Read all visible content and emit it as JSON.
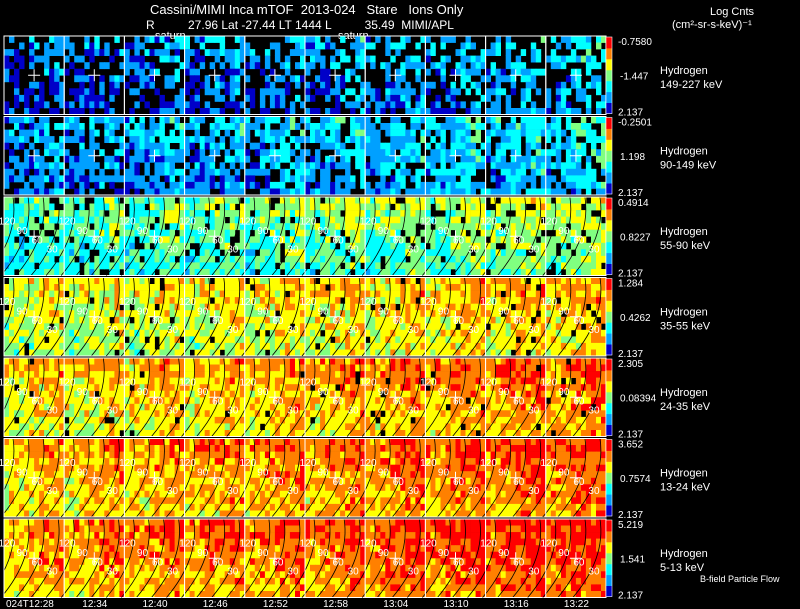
{
  "header": {
    "title": "Cassini/MIMI Inca mTOF  2013-024   Stare   Ions Only",
    "geometry_line": "R          27.96 Lat -27.44 LT 1444 L          35.49  MIMI/APL",
    "panel_tags": [
      "saturn",
      "saturn"
    ]
  },
  "units": {
    "line1": "Log Cnts",
    "line2": "(cm²-sr-s-keV)⁻¹"
  },
  "footer_note": "B-field Particle Flow",
  "chart_data": {
    "type": "heatmap",
    "title": "Cassini/MIMI Inca mTOF  2013-024   Stare   Ions Only",
    "time_labels": [
      "024T12:28",
      "12:34",
      "12:40",
      "12:46",
      "12:52",
      "12:58",
      "13:04",
      "13:10",
      "13:16",
      "13:22"
    ],
    "pitch_angle_contours": [
      "30",
      "60",
      "90",
      "120"
    ],
    "grid": true,
    "colorscale": [
      "#0000c8",
      "#00a0ff",
      "#00ffff",
      "#80ff80",
      "#ffff00",
      "#ff8000",
      "#ff0000"
    ],
    "rows": [
      {
        "species": "Hydrogen",
        "energy": "149-227 keV",
        "cbar_max": "-0.7580",
        "cbar_mid": "-1.447",
        "cbar_min": "2.137",
        "level": 0.15,
        "fill": 0.55
      },
      {
        "species": "Hydrogen",
        "energy": "90-149 keV",
        "cbar_max": "-0.2501",
        "cbar_mid": "1.198",
        "cbar_min": "2.137",
        "level": 0.2,
        "fill": 0.75
      },
      {
        "species": "Hydrogen",
        "energy": "55-90 keV",
        "cbar_max": "0.4914",
        "cbar_mid": "0.8227",
        "cbar_min": "2.137",
        "level": 0.42,
        "fill": 0.88
      },
      {
        "species": "Hydrogen",
        "energy": "35-55 keV",
        "cbar_max": "1.284",
        "cbar_mid": "0.4262",
        "cbar_min": "2.137",
        "level": 0.58,
        "fill": 0.95
      },
      {
        "species": "Hydrogen",
        "energy": "24-35 keV",
        "cbar_max": "2.305",
        "cbar_mid": "0.08394",
        "cbar_min": "2.137",
        "level": 0.66,
        "fill": 0.97
      },
      {
        "species": "Hydrogen",
        "energy": "13-24 keV",
        "cbar_max": "3.652",
        "cbar_mid": "0.7574",
        "cbar_min": "2.137",
        "level": 0.7,
        "fill": 1.0
      },
      {
        "species": "Hydrogen",
        "energy": "5-13 keV",
        "cbar_max": "5.219",
        "cbar_mid": "1.541",
        "cbar_min": "2.137",
        "level": 0.74,
        "fill": 1.0
      }
    ]
  }
}
